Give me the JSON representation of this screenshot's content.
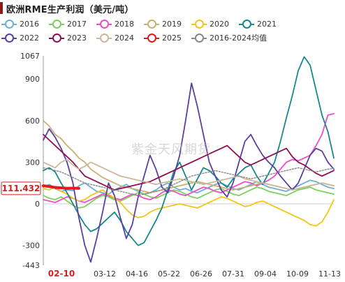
{
  "header": {
    "title": "欧洲RME生产利润（美元/吨）"
  },
  "watermark": "紫金天风期货",
  "colors": {
    "2016": "#6baed6",
    "2017": "#7cd05a",
    "2018": "#f04cc8",
    "2019": "#c8b070",
    "2020": "#f4c418",
    "2021": "#15888c",
    "2022": "#5b3fa0",
    "2023": "#8e0f56",
    "2024": "#c9b99a",
    "2025": "#e31a1c",
    "avg": "#888888"
  },
  "chart_data": {
    "type": "line",
    "title": "欧洲RME生产利润（美元/吨）",
    "xlabel": "",
    "ylabel": "",
    "x_ticks": [
      "02-10",
      "03-12",
      "04-16",
      "05-22",
      "06-26",
      "07-31",
      "09-04",
      "10-09",
      "11-13"
    ],
    "y_ticks": [
      -443,
      -300,
      0,
      300,
      600,
      900,
      1067
    ],
    "ylim": [
      -443,
      1067
    ],
    "grid": false,
    "legend_position": "top",
    "last_value_label": "111.432",
    "series": [
      {
        "name": "2016",
        "key": "2016",
        "values": [
          120,
          140,
          110,
          90,
          100,
          95,
          130,
          150,
          120,
          90,
          80,
          70,
          100,
          120,
          140,
          110,
          90,
          70,
          80,
          100,
          130,
          150,
          120,
          100,
          110,
          90,
          80,
          100,
          120,
          140,
          150,
          130,
          110,
          100,
          120,
          140,
          160,
          140,
          120,
          110,
          100,
          90,
          110,
          130,
          150,
          170,
          160,
          140,
          120,
          110
        ]
      },
      {
        "name": "2017",
        "key": "2017",
        "values": [
          60,
          40,
          30,
          50,
          20,
          -10,
          -30,
          -20,
          10,
          40,
          60,
          50,
          30,
          20,
          40,
          60,
          80,
          70,
          50,
          40,
          60,
          80,
          100,
          90,
          70,
          50,
          40,
          60,
          80,
          100,
          110,
          90,
          70,
          60,
          80,
          100,
          120,
          110,
          90,
          80,
          70,
          60,
          80,
          100,
          110,
          120,
          100,
          90,
          80,
          70
        ]
      },
      {
        "name": "2018",
        "key": "2018",
        "values": [
          30,
          20,
          10,
          30,
          50,
          40,
          20,
          10,
          30,
          50,
          70,
          60,
          40,
          30,
          50,
          70,
          60,
          40,
          30,
          50,
          80,
          100,
          90,
          70,
          60,
          80,
          100,
          120,
          110,
          90,
          80,
          100,
          120,
          140,
          160,
          150,
          130,
          150,
          170,
          200,
          250,
          300,
          320,
          310,
          330,
          350,
          420,
          500,
          640,
          650
        ]
      },
      {
        "name": "2019",
        "key": "2019",
        "values": [
          600,
          560,
          500,
          470,
          420,
          380,
          330,
          300,
          250,
          220,
          190,
          170,
          150,
          130,
          120,
          110,
          100,
          90,
          80,
          90,
          100,
          110,
          120,
          130,
          140,
          150,
          160,
          150,
          140,
          130,
          120,
          110,
          100,
          110,
          120,
          130,
          140,
          150,
          140,
          130,
          120,
          110,
          100,
          110,
          120,
          130,
          140,
          150,
          140,
          130
        ]
      },
      {
        "name": "2020",
        "key": "2020",
        "values": [
          110,
          100,
          120,
          90,
          70,
          40,
          20,
          30,
          60,
          80,
          100,
          70,
          40,
          10,
          -40,
          -80,
          -100,
          -90,
          -60,
          -40,
          -30,
          -20,
          -10,
          0,
          -10,
          -20,
          -30,
          -10,
          10,
          30,
          50,
          40,
          20,
          0,
          -20,
          -10,
          10,
          20,
          0,
          -20,
          -40,
          -60,
          -80,
          -100,
          -120,
          -150,
          -160,
          -130,
          -60,
          30
        ]
      },
      {
        "name": "2021",
        "key": "2021",
        "values": [
          240,
          260,
          230,
          150,
          80,
          0,
          -80,
          -150,
          -200,
          -180,
          -140,
          -100,
          -60,
          -120,
          -200,
          -250,
          -300,
          -280,
          -200,
          -120,
          -30,
          100,
          230,
          300,
          200,
          100,
          180,
          260,
          240,
          200,
          150,
          120,
          180,
          220,
          260,
          280,
          200,
          140,
          220,
          300,
          450,
          620,
          780,
          960,
          1060,
          1000,
          820,
          640,
          520,
          330
        ]
      },
      {
        "name": "2022",
        "key": "2022",
        "values": [
          460,
          540,
          480,
          400,
          300,
          150,
          -100,
          -300,
          -420,
          -250,
          -60,
          150,
          60,
          -100,
          -250,
          -150,
          50,
          200,
          350,
          250,
          120,
          80,
          200,
          350,
          600,
          870,
          700,
          500,
          300,
          200,
          100,
          50,
          150,
          300,
          450,
          500,
          420,
          350,
          300,
          260,
          200,
          150,
          100,
          150,
          250,
          350,
          400,
          380,
          300,
          250
        ]
      },
      {
        "name": "2023",
        "key": "2023",
        "values": [
          500,
          460,
          420,
          380,
          340,
          300,
          250,
          200,
          180,
          160,
          140,
          120,
          100,
          110,
          120,
          130,
          140,
          150,
          160,
          180,
          200,
          220,
          240,
          260,
          280,
          300,
          320,
          340,
          360,
          380,
          400,
          420,
          380,
          340,
          300,
          280,
          300,
          320,
          340,
          360,
          380,
          400,
          340,
          300,
          280,
          250,
          220,
          200,
          220,
          240
        ]
      },
      {
        "name": "2024",
        "key": "2024",
        "values": [
          300,
          280,
          260,
          300,
          320,
          280,
          250,
          270,
          300,
          280,
          260,
          240,
          220,
          200,
          190,
          180,
          170,
          160,
          150,
          140,
          150,
          160,
          170,
          180,
          170,
          160,
          150,
          140,
          150,
          160,
          170,
          180,
          190,
          200,
          180,
          170,
          160,
          150,
          140,
          130,
          120,
          110,
          100,
          110,
          120,
          130,
          140,
          150,
          140,
          130
        ]
      },
      {
        "name": "2025",
        "key": "2025",
        "values": [
          130,
          125,
          118,
          115,
          112,
          113,
          111.432
        ]
      },
      {
        "name": "2016-2024均值",
        "key": "avg",
        "values": [
          260,
          250,
          240,
          230,
          210,
          190,
          170,
          150,
          140,
          130,
          120,
          110,
          100,
          90,
          80,
          70,
          60,
          70,
          80,
          90,
          100,
          120,
          140,
          160,
          180,
          200,
          210,
          220,
          230,
          240,
          230,
          220,
          210,
          200,
          190,
          180,
          190,
          200,
          210,
          220,
          230,
          240,
          250,
          260,
          250,
          240,
          230,
          240,
          250,
          255
        ]
      }
    ]
  }
}
